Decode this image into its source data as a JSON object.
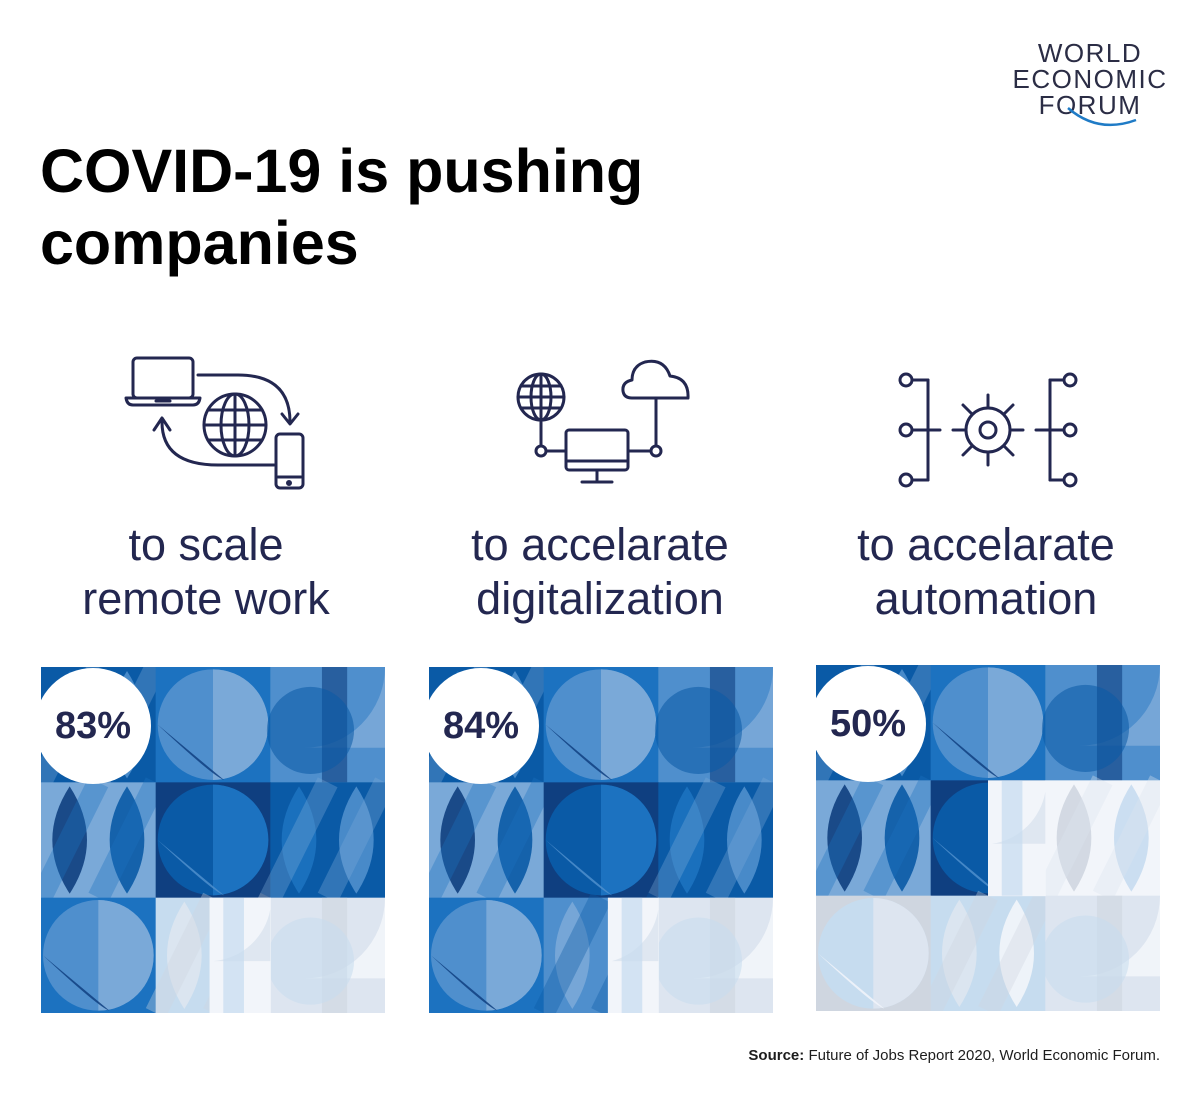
{
  "brand": {
    "logo_lines": [
      "WORLD",
      "ECONOMIC",
      "FORUM"
    ],
    "arc_color": "#1f7bc6"
  },
  "title": "COVID-19 is pushing companies",
  "chart_data": {
    "type": "bar",
    "title": "COVID-19 is pushing companies",
    "categories": [
      "to scale remote work",
      "to accelarate digitalization",
      "to accelarate automation"
    ],
    "values": [
      83,
      84,
      50
    ],
    "value_labels": [
      "83%",
      "84%",
      "50%"
    ],
    "unit": "%",
    "ylim": [
      0,
      100
    ],
    "representation": "3x3 tile grid filled in blue proportionally to the value; remainder in light grey",
    "colors": {
      "filled": [
        "#0a5aa6",
        "#1c72c0",
        "#4f8fcd",
        "#7aa9d8",
        "#0f3f80"
      ],
      "empty": [
        "#dde5f0",
        "#f2f5fa",
        "#cfd6e0",
        "#c6dcef"
      ],
      "text": "#232750"
    }
  },
  "items": [
    {
      "label_line1": "to scale",
      "label_line2": "remote work",
      "icon": "remote-work-icon",
      "value_text": "83%"
    },
    {
      "label_line1": "to accelarate",
      "label_line2": "digitalization",
      "icon": "digitalization-icon",
      "value_text": "84%"
    },
    {
      "label_line1": "to accelarate",
      "label_line2": "automation",
      "icon": "automation-icon",
      "value_text": "50%"
    }
  ],
  "source": {
    "label": "Source:",
    "text": " Future of Jobs Report 2020, World Economic Forum."
  }
}
